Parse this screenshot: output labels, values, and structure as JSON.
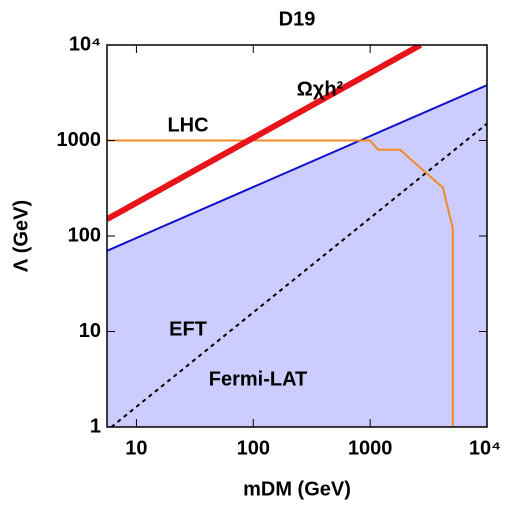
{
  "chart_data": {
    "type": "line",
    "title": "D19",
    "x_label": "mDM (GeV)",
    "y_label": "Λ (GeV)",
    "xlog": true,
    "ylog": true,
    "xlim": [
      5.6,
      10000
    ],
    "ylim": [
      1,
      10000
    ],
    "xticks": [
      10,
      100,
      1000,
      {
        "value": 10000,
        "label": "10⁴"
      }
    ],
    "yticks": [
      1,
      10,
      100,
      1000,
      {
        "value": 10000,
        "label": "10⁴"
      }
    ],
    "series": [
      {
        "name": "Fermi-LAT",
        "color": "#1010cc",
        "fill": "#ccccff",
        "x": [
          5.6,
          10000
        ],
        "values": [
          70,
          3800
        ]
      },
      {
        "name": "EFT",
        "color": "#000000",
        "dashed": true,
        "x": [
          6.1,
          10000
        ],
        "values": [
          1,
          1500
        ]
      },
      {
        "name": "LHC",
        "color": "#f08a24",
        "x": [
          5.6,
          1000,
          1170,
          1800,
          4200,
          5100,
          5100
        ],
        "values": [
          1000,
          1000,
          800,
          800,
          320,
          120,
          1
        ]
      },
      {
        "name": "Ωχh²",
        "color": "#e8141c",
        "width": 6,
        "x": [
          5.6,
          2700
        ],
        "values": [
          150,
          10000
        ]
      }
    ]
  }
}
